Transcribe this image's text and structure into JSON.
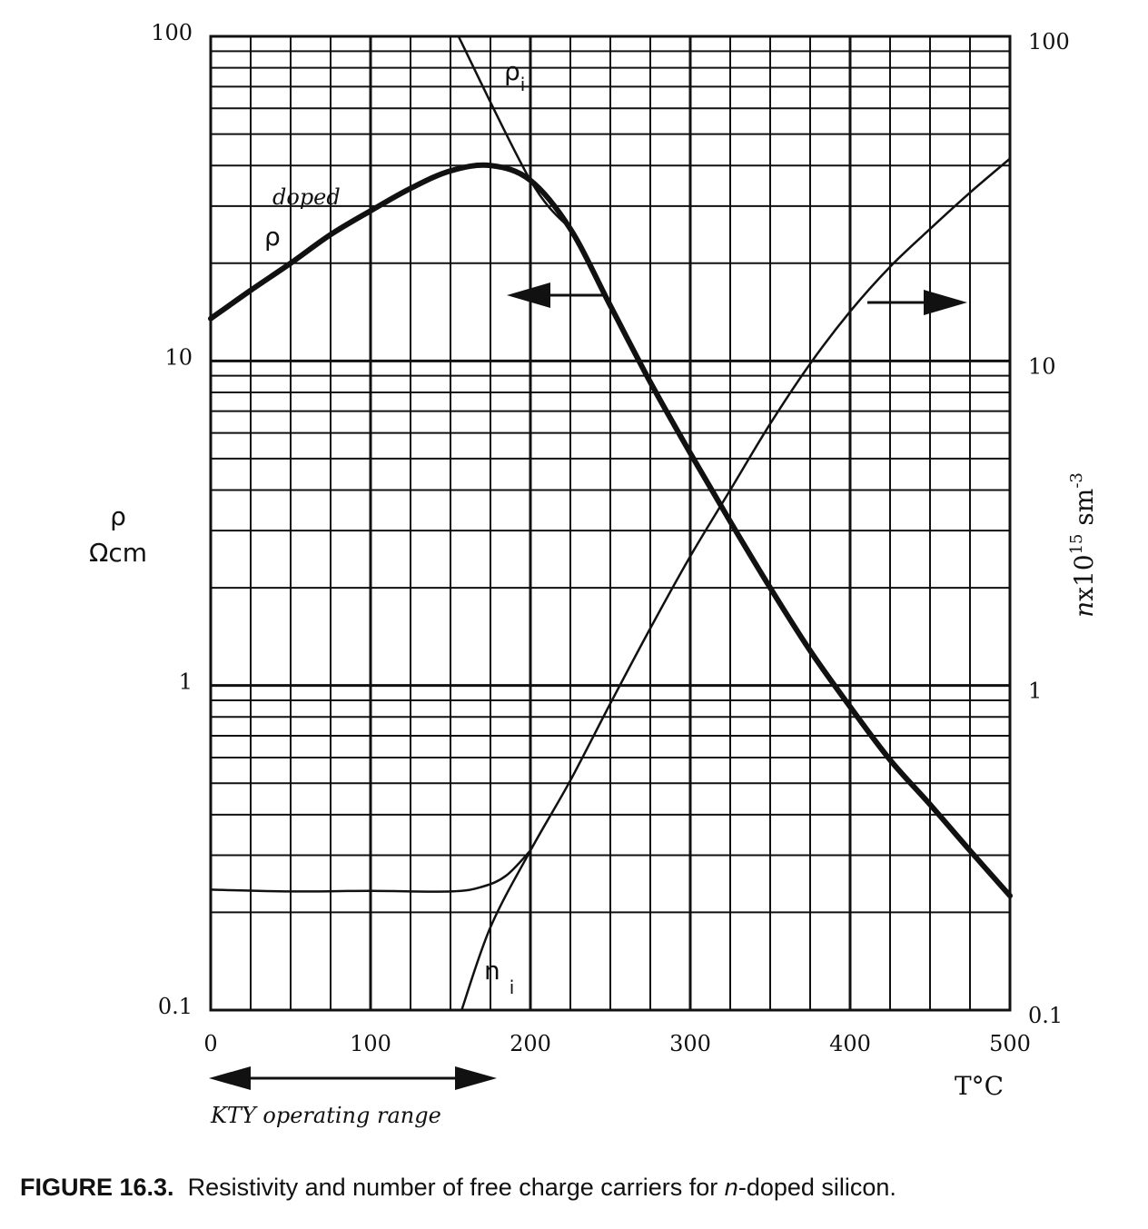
{
  "chart_data": {
    "type": "line",
    "x_axis": {
      "label": "T°C",
      "range": [
        0,
        500
      ],
      "ticks": [
        0,
        100,
        200,
        300,
        400,
        500
      ],
      "grid_step": 25
    },
    "y_axis_left": {
      "label_line1": "ρ",
      "label_line2": "Ωcm",
      "scale": "log",
      "range": [
        0.1,
        100
      ],
      "tick_labels": [
        "0.1",
        "1",
        "10",
        "100"
      ]
    },
    "y_axis_right": {
      "label_prefix": "n",
      "label_mid": "x10",
      "label_exp": "15",
      "label_unit": " sm",
      "label_unit_exp": "-3",
      "scale": "log",
      "range": [
        0.1,
        100
      ],
      "tick_labels": [
        "0.1",
        "1",
        "10",
        "100"
      ]
    },
    "series": [
      {
        "label": "ρ",
        "label_sup": "doped",
        "axis": "left",
        "style": "thick",
        "points": [
          [
            0,
            13.5
          ],
          [
            25,
            16.5
          ],
          [
            50,
            20
          ],
          [
            75,
            24.5
          ],
          [
            100,
            29
          ],
          [
            125,
            34
          ],
          [
            150,
            38.5
          ],
          [
            175,
            40
          ],
          [
            200,
            36
          ],
          [
            225,
            25.5
          ],
          [
            250,
            14.8
          ],
          [
            275,
            8.6
          ],
          [
            300,
            5.2
          ],
          [
            325,
            3.2
          ],
          [
            350,
            2.0
          ],
          [
            375,
            1.28
          ],
          [
            400,
            0.86
          ],
          [
            425,
            0.59
          ],
          [
            450,
            0.43
          ],
          [
            475,
            0.31
          ],
          [
            500,
            0.225
          ]
        ]
      },
      {
        "label": "ρ",
        "label_sub": "i",
        "axis": "left",
        "style": "thin",
        "points": [
          [
            155,
            100
          ],
          [
            200,
            36
          ],
          [
            225,
            25.5
          ]
        ]
      },
      {
        "label": "n",
        "label_sub": "i",
        "axis": "right",
        "style": "thin",
        "points": [
          [
            157,
            0.1
          ],
          [
            175,
            0.18
          ],
          [
            200,
            0.31
          ],
          [
            225,
            0.51
          ],
          [
            250,
            0.88
          ],
          [
            275,
            1.5
          ],
          [
            300,
            2.5
          ],
          [
            325,
            4.0
          ],
          [
            350,
            6.4
          ],
          [
            375,
            9.8
          ],
          [
            400,
            14.2
          ],
          [
            425,
            19.5
          ],
          [
            450,
            25.5
          ],
          [
            475,
            33
          ],
          [
            500,
            42
          ]
        ]
      },
      {
        "label": "",
        "axis": "right",
        "style": "thin",
        "points": [
          [
            0,
            0.235
          ],
          [
            50,
            0.232
          ],
          [
            100,
            0.233
          ],
          [
            150,
            0.232
          ],
          [
            170,
            0.24
          ],
          [
            185,
            0.26
          ],
          [
            200,
            0.31
          ]
        ]
      }
    ],
    "annotations": {
      "left_arrow": "points to left axis",
      "right_arrow": "points to right axis"
    },
    "operating_range": {
      "label": "KTY operating range",
      "from": 0,
      "to": 180
    }
  },
  "caption": {
    "bold": "FIGURE 16.3.",
    "text_pre": "  Resistivity and number of free charge carriers for ",
    "text_italic": "n",
    "text_post": "-doped silicon."
  }
}
